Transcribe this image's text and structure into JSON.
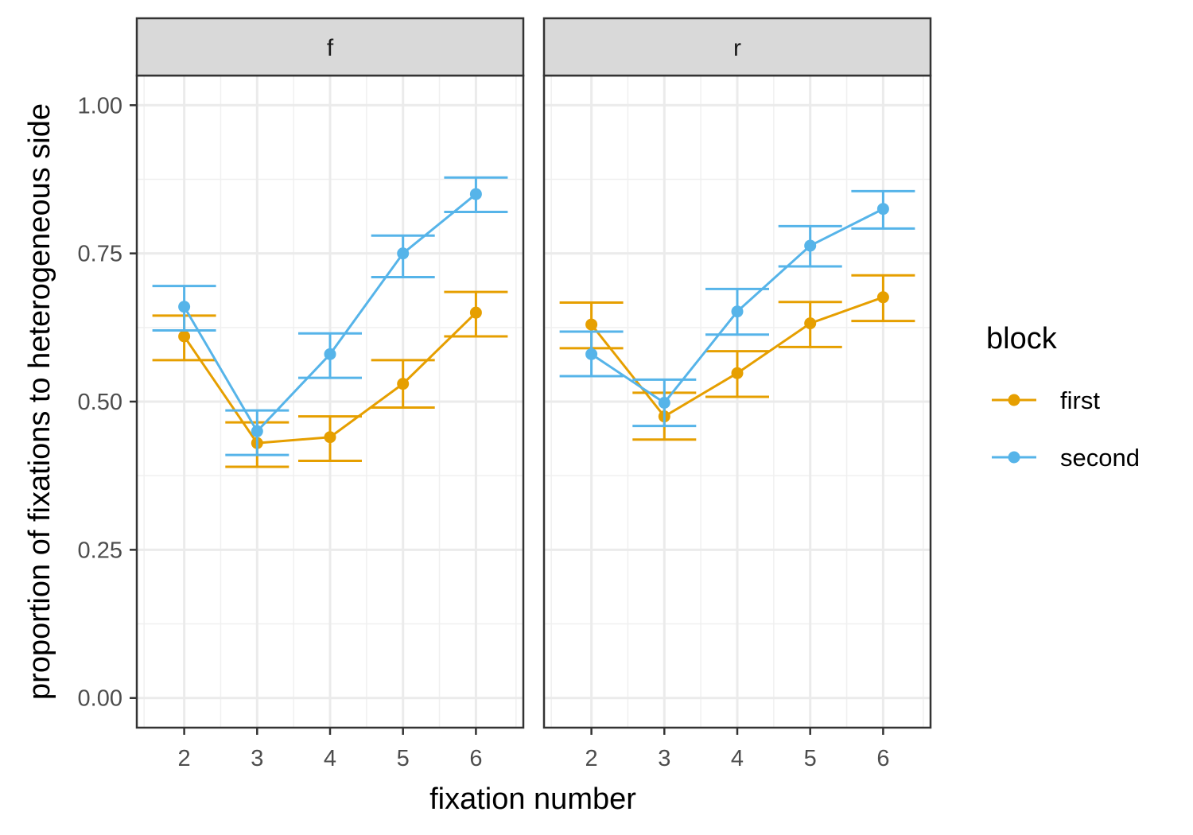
{
  "chart_data": {
    "type": "line",
    "xlabel": "fixation number",
    "ylabel": "proportion of fixations to heterogeneous side",
    "x": [
      2,
      3,
      4,
      5,
      6
    ],
    "x_ticks": [
      "2",
      "3",
      "4",
      "5",
      "6"
    ],
    "ylim": [
      -0.05,
      1.05
    ],
    "y_ticks": [
      "0.00",
      "0.25",
      "0.50",
      "0.75",
      "1.00"
    ],
    "grid": true,
    "legend": {
      "title": "block",
      "placement": "right",
      "entries": [
        "first",
        "second"
      ]
    },
    "series_colors": {
      "first": "#E69F00",
      "second": "#56B4E9"
    },
    "facets": [
      {
        "label": "f",
        "series": [
          {
            "name": "first",
            "values": [
              0.61,
              0.43,
              0.44,
              0.53,
              0.65
            ],
            "lower": [
              0.57,
              0.39,
              0.4,
              0.49,
              0.61
            ],
            "upper": [
              0.645,
              0.465,
              0.475,
              0.57,
              0.685
            ]
          },
          {
            "name": "second",
            "values": [
              0.66,
              0.45,
              0.58,
              0.75,
              0.85
            ],
            "lower": [
              0.62,
              0.41,
              0.54,
              0.71,
              0.82
            ],
            "upper": [
              0.695,
              0.485,
              0.615,
              0.78,
              0.878
            ]
          }
        ]
      },
      {
        "label": "r",
        "series": [
          {
            "name": "first",
            "values": [
              0.63,
              0.475,
              0.548,
              0.632,
              0.676
            ],
            "lower": [
              0.59,
              0.436,
              0.508,
              0.592,
              0.636
            ],
            "upper": [
              0.667,
              0.515,
              0.585,
              0.668,
              0.713
            ]
          },
          {
            "name": "second",
            "values": [
              0.58,
              0.498,
              0.652,
              0.763,
              0.825
            ],
            "lower": [
              0.543,
              0.459,
              0.613,
              0.728,
              0.792
            ],
            "upper": [
              0.618,
              0.537,
              0.69,
              0.796,
              0.855
            ]
          }
        ]
      }
    ]
  }
}
